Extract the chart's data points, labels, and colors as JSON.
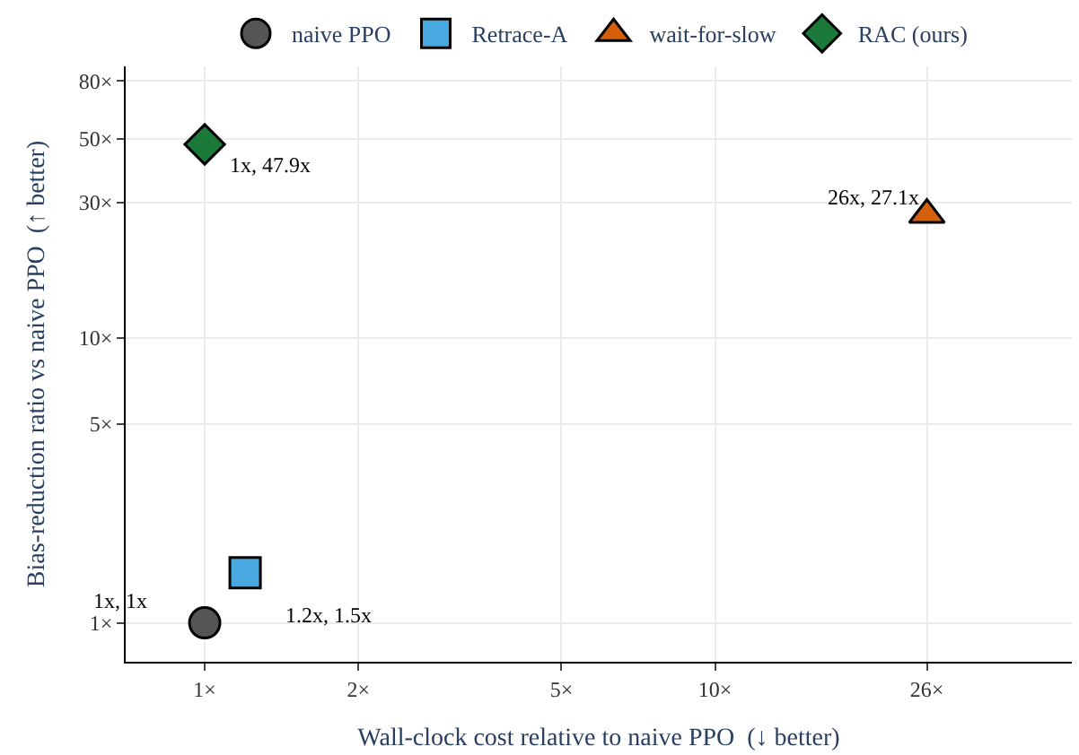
{
  "chart_data": {
    "type": "scatter",
    "xlabel": "Wall-clock cost relative to naive PPO  (↓ better)",
    "ylabel": "Bias-reduction ratio vs naive PPO  (↑ better)",
    "log": "xy",
    "grid": true,
    "legend": "top",
    "xlim": [
      0.7,
      50
    ],
    "ylim": [
      0.73,
      90
    ],
    "xticks": [
      {
        "value": 1,
        "label": "1×"
      },
      {
        "value": 2,
        "label": "2×"
      },
      {
        "value": 5,
        "label": "5×"
      },
      {
        "value": 10,
        "label": "10×"
      },
      {
        "value": 26,
        "label": "26×"
      }
    ],
    "yticks": [
      {
        "value": 1,
        "label": "1×"
      },
      {
        "value": 5,
        "label": "5×"
      },
      {
        "value": 10,
        "label": "10×"
      },
      {
        "value": 30,
        "label": "30×"
      },
      {
        "value": 50,
        "label": "50×"
      },
      {
        "value": 80,
        "label": "80×"
      }
    ],
    "series": [
      {
        "name": "naive PPO",
        "color": "#555555",
        "marker": "circle",
        "x": [
          1
        ],
        "values": [
          1
        ]
      },
      {
        "name": "Retrace-A",
        "color": "#4aa8e0",
        "marker": "square",
        "x": [
          1.2
        ],
        "values": [
          1.5
        ]
      },
      {
        "name": "wait-for-slow",
        "color": "#d4600c",
        "marker": "triangle",
        "x": [
          26
        ],
        "values": [
          27.1
        ]
      },
      {
        "name": "RAC (ours)",
        "color": "#1b7a3a",
        "marker": "diamond",
        "x": [
          1
        ],
        "values": [
          47.9
        ]
      }
    ],
    "annotations": [
      {
        "text": "1x, 1x",
        "x": 1,
        "y": 1
      },
      {
        "text": "1.2x, 1.5x",
        "x": 1.2,
        "y": 1.5
      },
      {
        "text": "26x, 27.1x",
        "x": 26,
        "y": 27.1
      },
      {
        "text": "1x, 47.9x",
        "x": 1,
        "y": 47.9
      }
    ]
  }
}
